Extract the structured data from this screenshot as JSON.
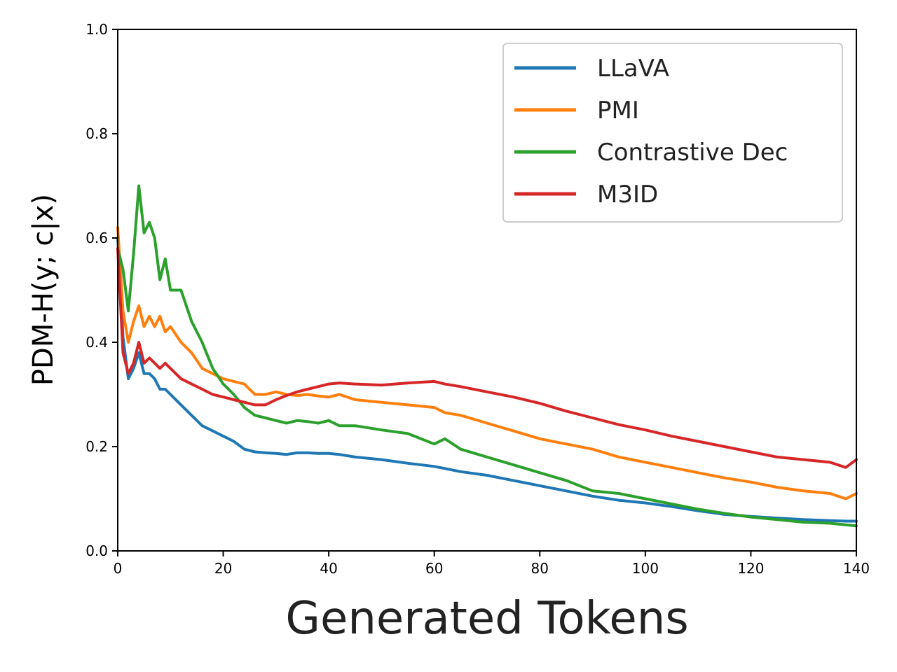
{
  "chart_data": {
    "type": "line",
    "title": "",
    "xlabel": "Generated Tokens",
    "ylabel": "PDM-H(y; c|x)",
    "xlim": [
      0,
      140
    ],
    "ylim": [
      0.0,
      1.0
    ],
    "xticks": [
      "0",
      "20",
      "40",
      "60",
      "80",
      "100",
      "120",
      "140"
    ],
    "yticks": [
      "0.0",
      "0.2",
      "0.4",
      "0.6",
      "0.8",
      "1.0"
    ],
    "grid": false,
    "legend_position": "top-right",
    "x": [
      0,
      1,
      2,
      3,
      4,
      5,
      6,
      7,
      8,
      9,
      10,
      12,
      14,
      16,
      18,
      20,
      22,
      24,
      26,
      28,
      30,
      32,
      34,
      36,
      38,
      40,
      42,
      45,
      50,
      55,
      60,
      62,
      65,
      70,
      75,
      80,
      85,
      90,
      95,
      100,
      105,
      110,
      115,
      120,
      125,
      130,
      135,
      138,
      140
    ],
    "series": [
      {
        "name": "LLaVA",
        "color": "#1f77b4",
        "values": [
          0.6,
          0.41,
          0.33,
          0.35,
          0.38,
          0.34,
          0.34,
          0.33,
          0.31,
          0.31,
          0.3,
          0.28,
          0.26,
          0.24,
          0.23,
          0.22,
          0.21,
          0.195,
          0.19,
          0.188,
          0.187,
          0.185,
          0.188,
          0.188,
          0.187,
          0.187,
          0.185,
          0.18,
          0.175,
          0.168,
          0.162,
          0.158,
          0.152,
          0.145,
          0.135,
          0.125,
          0.115,
          0.105,
          0.097,
          0.092,
          0.085,
          0.077,
          0.07,
          0.066,
          0.063,
          0.06,
          0.058,
          0.057,
          0.057
        ]
      },
      {
        "name": "PMI",
        "color": "#ff7f0e",
        "values": [
          0.62,
          0.46,
          0.4,
          0.44,
          0.47,
          0.43,
          0.45,
          0.43,
          0.45,
          0.42,
          0.43,
          0.4,
          0.38,
          0.35,
          0.34,
          0.33,
          0.325,
          0.32,
          0.3,
          0.3,
          0.305,
          0.3,
          0.298,
          0.3,
          0.297,
          0.295,
          0.3,
          0.29,
          0.285,
          0.28,
          0.275,
          0.265,
          0.26,
          0.245,
          0.23,
          0.215,
          0.205,
          0.195,
          0.18,
          0.17,
          0.16,
          0.15,
          0.14,
          0.132,
          0.122,
          0.115,
          0.11,
          0.1,
          0.11
        ]
      },
      {
        "name": "Contrastive Dec",
        "color": "#2ca02c",
        "values": [
          0.58,
          0.54,
          0.46,
          0.57,
          0.7,
          0.61,
          0.63,
          0.6,
          0.52,
          0.56,
          0.5,
          0.5,
          0.44,
          0.4,
          0.35,
          0.32,
          0.3,
          0.275,
          0.26,
          0.255,
          0.25,
          0.245,
          0.25,
          0.248,
          0.245,
          0.25,
          0.24,
          0.24,
          0.232,
          0.225,
          0.205,
          0.215,
          0.195,
          0.18,
          0.165,
          0.15,
          0.135,
          0.115,
          0.11,
          0.1,
          0.09,
          0.08,
          0.072,
          0.065,
          0.06,
          0.055,
          0.053,
          0.05,
          0.048
        ]
      },
      {
        "name": "M3ID",
        "color": "#d62728",
        "values": [
          0.58,
          0.38,
          0.34,
          0.36,
          0.4,
          0.36,
          0.37,
          0.36,
          0.35,
          0.36,
          0.35,
          0.33,
          0.32,
          0.31,
          0.3,
          0.295,
          0.29,
          0.285,
          0.28,
          0.28,
          0.29,
          0.298,
          0.305,
          0.31,
          0.315,
          0.32,
          0.322,
          0.32,
          0.318,
          0.322,
          0.325,
          0.32,
          0.315,
          0.305,
          0.295,
          0.283,
          0.268,
          0.255,
          0.242,
          0.232,
          0.22,
          0.21,
          0.2,
          0.19,
          0.18,
          0.175,
          0.17,
          0.16,
          0.175
        ]
      }
    ]
  }
}
